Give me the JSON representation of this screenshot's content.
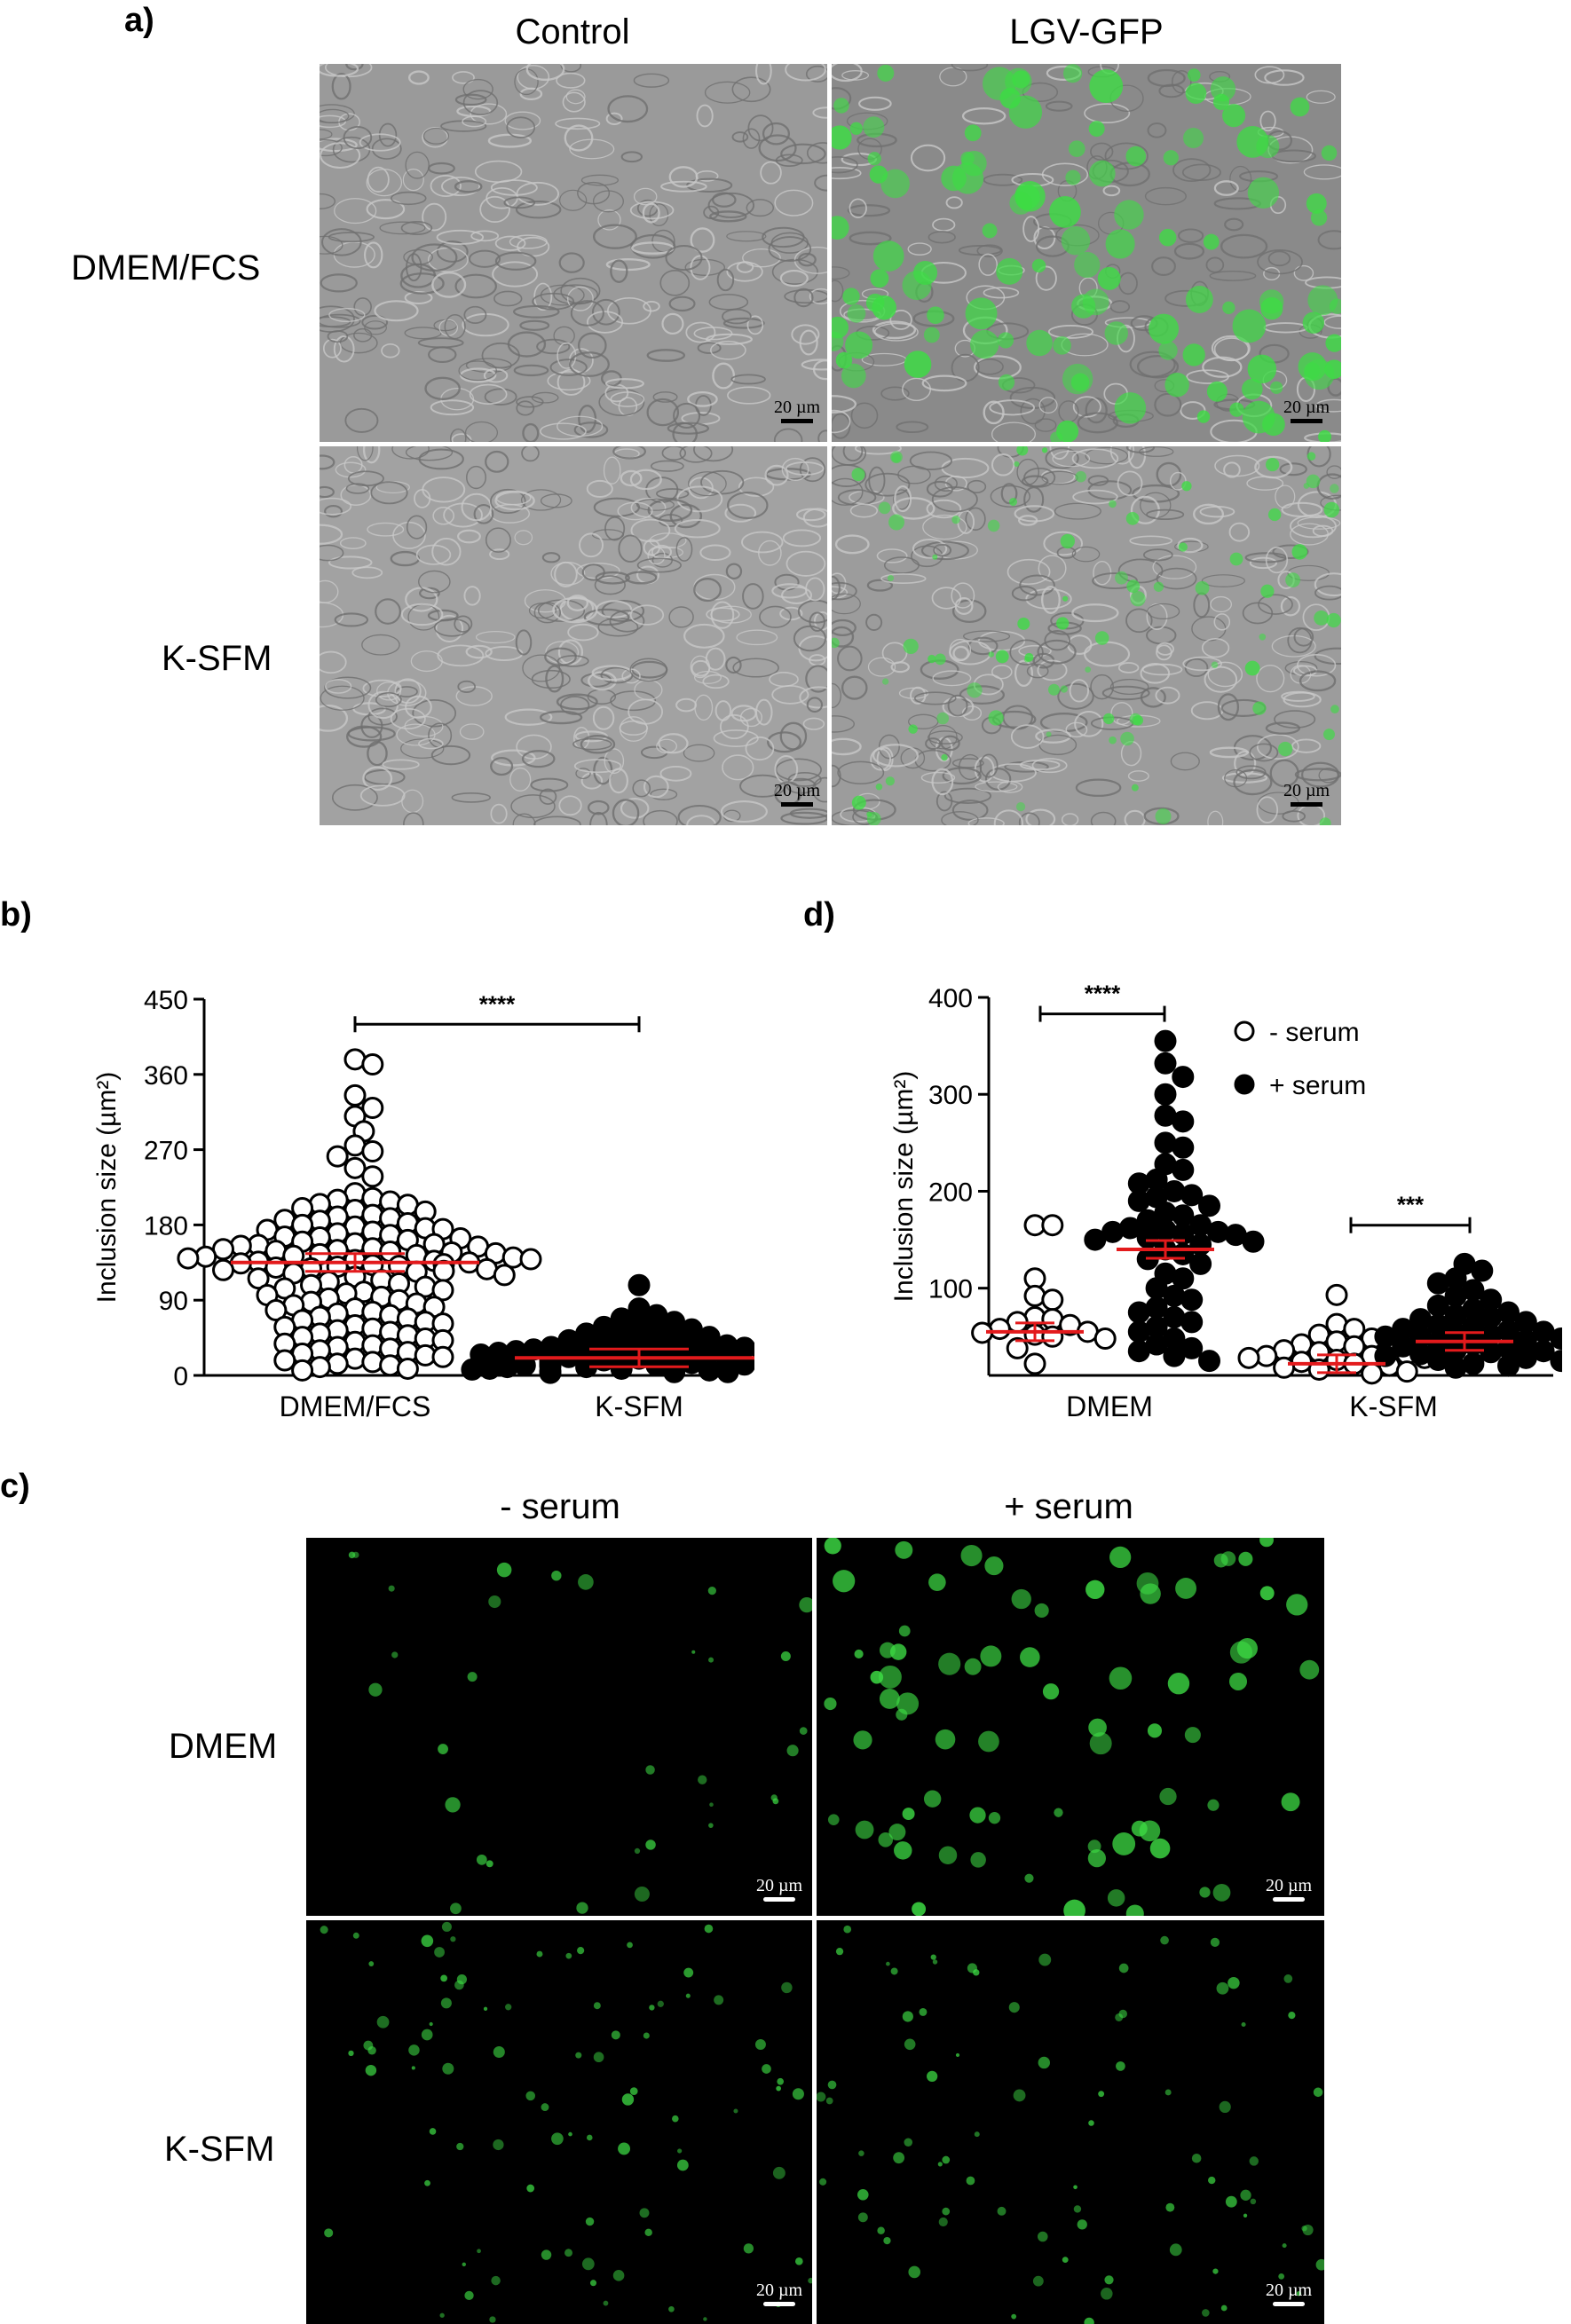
{
  "panel_a": {
    "letter": "a)",
    "columns": [
      "Control",
      "LGV-GFP"
    ],
    "rows": [
      "DMEM/FCS",
      "K-SFM"
    ],
    "scale_bar": "20 µm"
  },
  "panel_b": {
    "letter": "b)"
  },
  "panel_c": {
    "letter": "c)",
    "columns": [
      "- serum",
      "+ serum"
    ],
    "rows": [
      "DMEM",
      "K-SFM"
    ],
    "scale_bar": "20 µm"
  },
  "panel_d": {
    "letter": "d)"
  },
  "colors": {
    "mean_line": "#e31a1c",
    "gfp": "#3ddc44",
    "brightfield": "#9a9a9a",
    "fluor_bg": "#000000"
  },
  "chart_data": [
    {
      "type": "scatter",
      "panel": "b",
      "ylabel": "Inclusion size (µm²)",
      "ylim": [
        0,
        450
      ],
      "yticks": [
        0,
        90,
        180,
        270,
        360,
        450
      ],
      "categories": [
        "DMEM/FCS",
        "K-SFM"
      ],
      "series": [
        {
          "category": "DMEM/FCS",
          "marker": "open",
          "values": [
            378,
            372,
            335,
            320,
            310,
            292,
            275,
            268,
            262,
            248,
            238,
            218,
            212,
            210,
            208,
            205,
            204,
            200,
            198,
            196,
            192,
            190,
            188,
            186,
            185,
            182,
            180,
            178,
            176,
            175,
            174,
            172,
            170,
            168,
            166,
            165,
            164,
            162,
            160,
            158,
            157,
            156,
            155,
            154,
            152,
            151,
            150,
            149,
            148,
            147,
            146,
            145,
            144,
            143,
            142,
            141,
            140,
            139,
            138,
            137,
            136,
            135,
            134,
            133,
            132,
            131,
            130,
            129,
            128,
            127,
            126,
            125,
            124,
            122,
            120,
            118,
            116,
            114,
            112,
            110,
            108,
            106,
            104,
            102,
            100,
            98,
            96,
            94,
            92,
            90,
            88,
            86,
            84,
            82,
            80,
            78,
            76,
            74,
            72,
            70,
            68,
            66,
            64,
            62,
            60,
            58,
            56,
            54,
            52,
            50,
            48,
            46,
            44,
            42,
            40,
            38,
            36,
            34,
            32,
            30,
            28,
            26,
            24,
            22,
            20,
            18,
            16,
            14,
            12,
            10,
            8,
            6
          ]
        },
        {
          "category": "K-SFM",
          "marker": "filled",
          "values": [
            108,
            80,
            72,
            68,
            64,
            60,
            58,
            55,
            52,
            50,
            48,
            46,
            44,
            42,
            40,
            38,
            36,
            35,
            34,
            33,
            32,
            31,
            30,
            29,
            28,
            27,
            26,
            25,
            24,
            23,
            22,
            21,
            20,
            19,
            18,
            17,
            16,
            15,
            14,
            13,
            12,
            11,
            10,
            9,
            8,
            7,
            6,
            5,
            4,
            3,
            30,
            28,
            26,
            24,
            22,
            20,
            18,
            16,
            14,
            12,
            10,
            8,
            6,
            4,
            25,
            22,
            19,
            16,
            13,
            10,
            7,
            20,
            17,
            14,
            11,
            8,
            5
          ]
        }
      ],
      "means": [
        135,
        21
      ],
      "significance": [
        {
          "from": "DMEM/FCS",
          "to": "K-SFM",
          "label": "****",
          "y": 420
        }
      ]
    },
    {
      "type": "scatter",
      "panel": "d",
      "ylabel": "Inclusion size (µm²)",
      "ylim": [
        10,
        400
      ],
      "yticks": [
        100,
        200,
        300,
        400
      ],
      "categories": [
        "DMEM",
        "K-SFM"
      ],
      "legend": [
        {
          "name": "- serum",
          "marker": "open"
        },
        {
          "name": "+ serum",
          "marker": "filled"
        }
      ],
      "legend_position": "top-right",
      "series": [
        {
          "name": "- serum",
          "category": "DMEM",
          "marker": "open",
          "values": [
            165,
            165,
            110,
            92,
            88,
            70,
            68,
            65,
            62,
            58,
            55,
            54,
            52,
            50,
            48,
            38,
            22
          ]
        },
        {
          "name": "+ serum",
          "category": "DMEM",
          "marker": "filled",
          "values": [
            355,
            332,
            318,
            300,
            278,
            272,
            250,
            245,
            228,
            222,
            212,
            208,
            200,
            196,
            194,
            190,
            185,
            178,
            175,
            170,
            165,
            162,
            160,
            158,
            158,
            156,
            155,
            152,
            150,
            148,
            145,
            140,
            135,
            130,
            125,
            115,
            110,
            100,
            92,
            88,
            80,
            75,
            70,
            65,
            60,
            55,
            48,
            42,
            38,
            35,
            30,
            25
          ]
        },
        {
          "name": "- serum",
          "category": "K-SFM",
          "marker": "open",
          "values": [
            93,
            63,
            58,
            52,
            48,
            45,
            42,
            40,
            38,
            36,
            34,
            32,
            30,
            30,
            28,
            28,
            26,
            24,
            22,
            20,
            18,
            16,
            14,
            12
          ]
        },
        {
          "name": "+ serum",
          "category": "K-SFM",
          "marker": "filled",
          "values": [
            125,
            118,
            110,
            105,
            98,
            92,
            88,
            82,
            78,
            75,
            72,
            70,
            68,
            65,
            62,
            60,
            58,
            56,
            55,
            54,
            52,
            50,
            50,
            48,
            46,
            44,
            42,
            40,
            38,
            36,
            35,
            34,
            32,
            30,
            28,
            26,
            25,
            22,
            20,
            18
          ]
        }
      ],
      "means": [
        55,
        140,
        22,
        45
      ],
      "significance": [
        {
          "from": "DMEM - serum",
          "to": "DMEM + serum",
          "label": "****",
          "y": 383
        },
        {
          "from": "K-SFM - serum",
          "to": "K-SFM + serum",
          "label": "***",
          "y": 165
        }
      ]
    }
  ]
}
